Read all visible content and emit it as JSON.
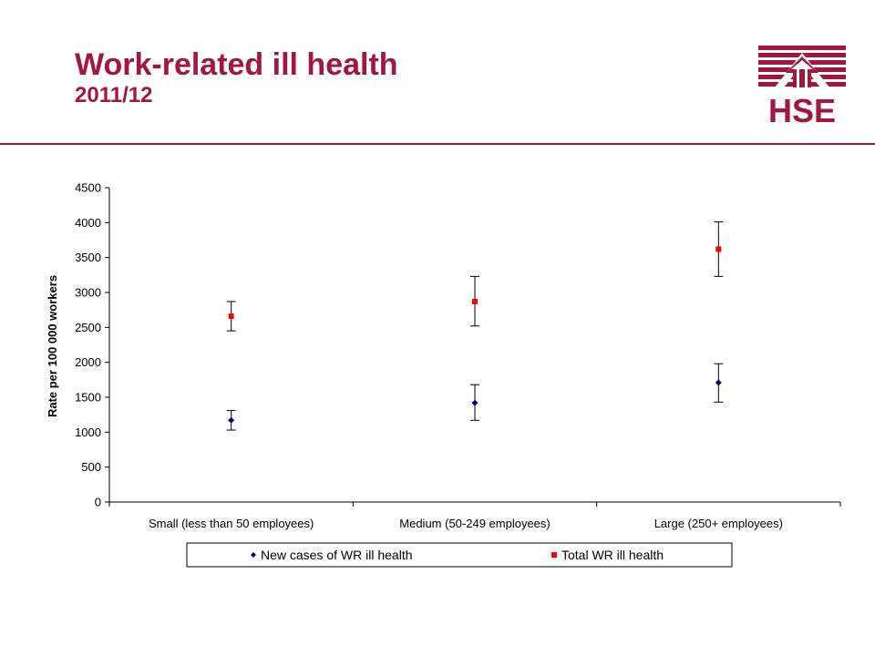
{
  "header": {
    "title": "Work-related ill health",
    "subtitle": "2011/12",
    "accent_color": "#a3163e"
  },
  "logo": {
    "text": "HSE",
    "icon": "hse-house-arrow-logo"
  },
  "chart_data": {
    "type": "scatter",
    "categories": [
      "Small (less than 50 employees)",
      "Medium (50-249 employees)",
      "Large (250+ employees)"
    ],
    "series": [
      {
        "name": "New cases of WR ill health",
        "color": "#000080",
        "marker": "diamond",
        "values": [
          1170,
          1420,
          1710
        ],
        "lower": [
          1030,
          1170,
          1430
        ],
        "upper": [
          1310,
          1680,
          1980
        ]
      },
      {
        "name": "Total WR ill health",
        "color": "#ff0000",
        "marker": "square",
        "values": [
          2660,
          2870,
          3620
        ],
        "lower": [
          2450,
          2520,
          3230
        ],
        "upper": [
          2870,
          3230,
          4010
        ]
      }
    ],
    "xlabel": "",
    "ylabel": "Rate per 100 000 workers",
    "ylim": [
      0,
      4500
    ],
    "yticks": [
      0,
      500,
      1000,
      1500,
      2000,
      2500,
      3000,
      3500,
      4000,
      4500
    ],
    "grid": false,
    "legend_position": "bottom",
    "error_bars": true
  }
}
